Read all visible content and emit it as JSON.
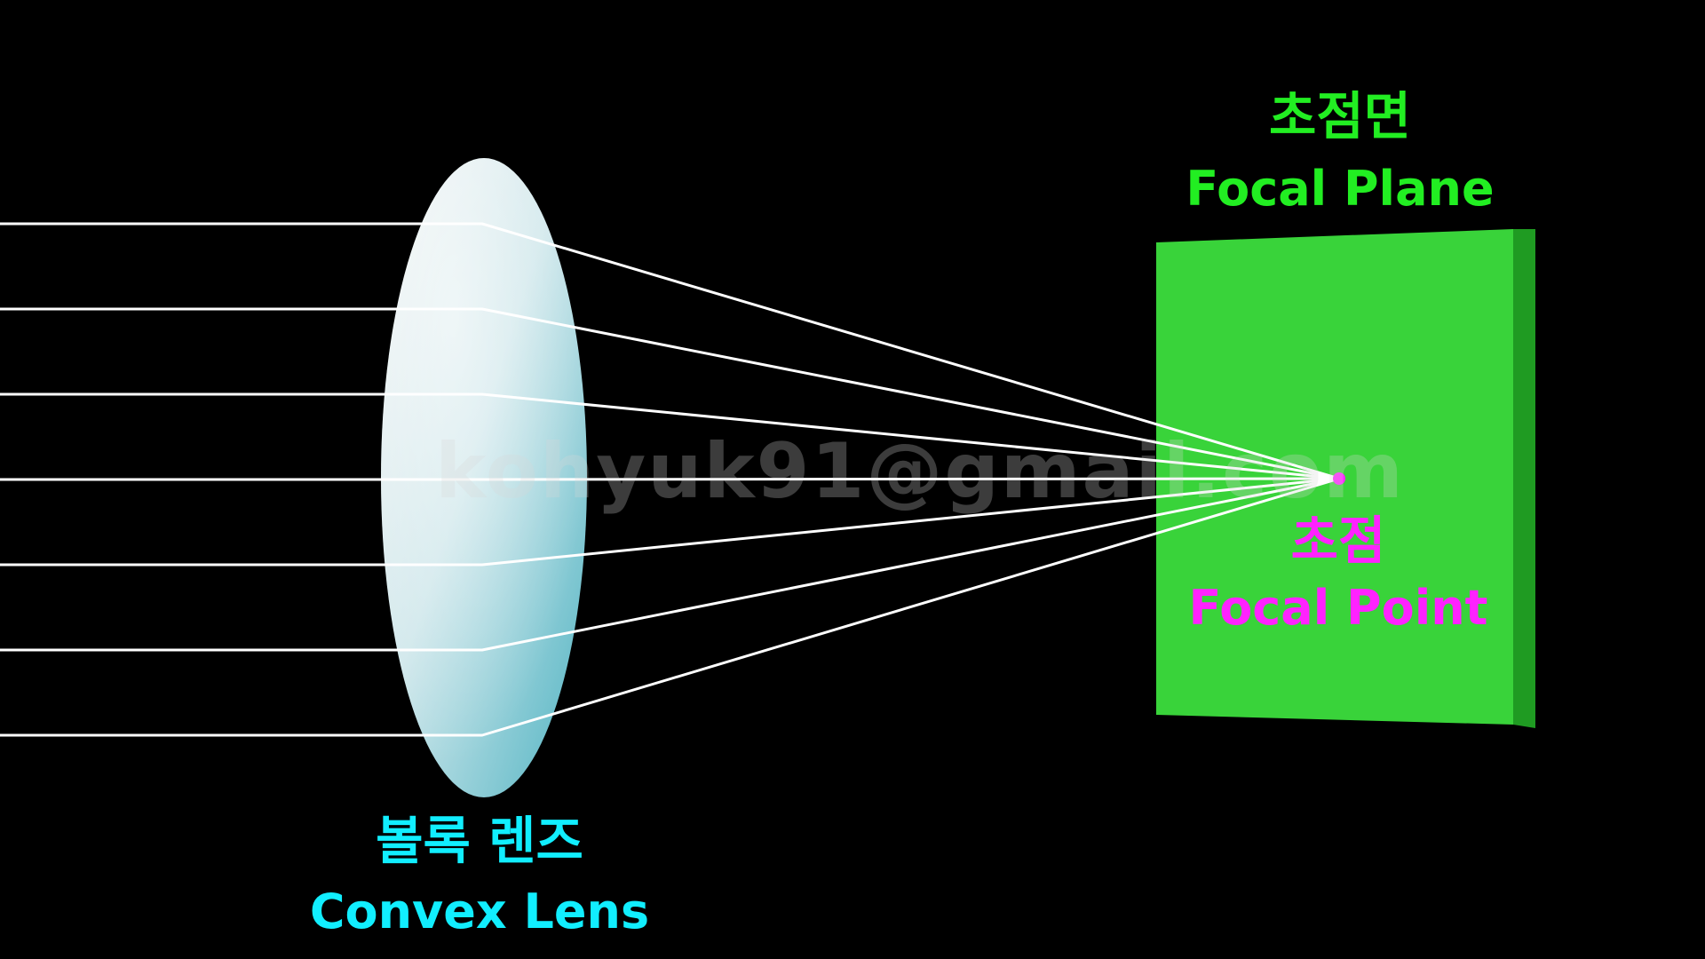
{
  "colors": {
    "background": "#000000",
    "ray": "#ffffff",
    "focal_plane_front": "#39d33a",
    "focal_plane_side": "#1f9b22",
    "focal_plane_label": "#22ee22",
    "focal_point": "#ff22ff",
    "focal_point_label": "#ff22ff",
    "lens_label": "#11eeff",
    "lens_light": "#f2f4f4",
    "lens_mid": "#cfe7eb",
    "lens_edge": "#4fb3c2"
  },
  "labels": {
    "focal_plane_ko": "초점면",
    "focal_plane_en": "Focal Plane",
    "focal_point_ko": "초점",
    "focal_point_en": "Focal Point",
    "lens_ko": "볼록 렌즈",
    "lens_en": "Convex Lens"
  },
  "watermark": "kohyuk91@gmail.com",
  "rays": {
    "count": 7
  }
}
